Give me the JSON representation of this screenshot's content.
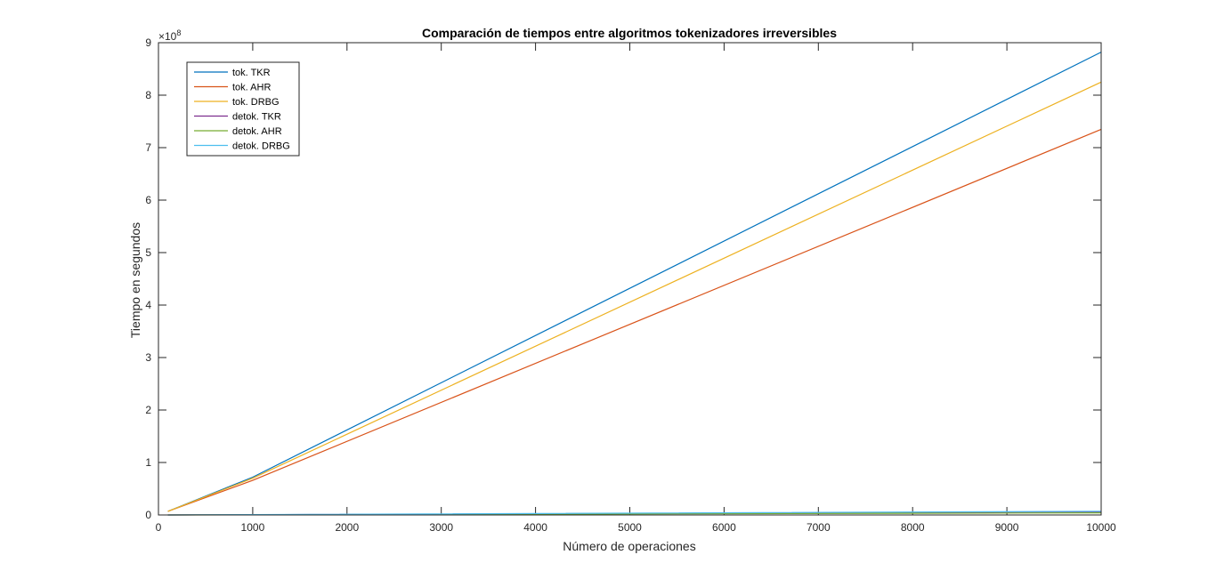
{
  "chart_data": {
    "type": "line",
    "title": "Comparación de tiempos entre algoritmos tokenizadores irreversibles",
    "xlabel": "Número de operaciones",
    "ylabel": "Tiempo en segundos",
    "xlim": [
      0,
      10000
    ],
    "ylim": [
      0,
      9
    ],
    "y_exponent_label": "×10",
    "y_exponent_power": "8",
    "x_ticks": [
      "0",
      "1000",
      "2000",
      "3000",
      "4000",
      "5000",
      "6000",
      "7000",
      "8000",
      "9000",
      "10000"
    ],
    "y_ticks": [
      "0",
      "1",
      "2",
      "3",
      "4",
      "5",
      "6",
      "7",
      "8",
      "9"
    ],
    "grid": false,
    "legend_position": "top-left",
    "series": [
      {
        "name": "tok. TKR",
        "color": "#0072BD",
        "x": [
          100,
          1000,
          10000
        ],
        "y": [
          0.07,
          0.72,
          8.82
        ]
      },
      {
        "name": "tok. AHR",
        "color": "#D95319",
        "x": [
          100,
          1000,
          10000
        ],
        "y": [
          0.07,
          0.66,
          7.35
        ]
      },
      {
        "name": "tok. DRBG",
        "color": "#EDB120",
        "x": [
          100,
          1000,
          10000
        ],
        "y": [
          0.07,
          0.7,
          8.25
        ]
      },
      {
        "name": "detok. TKR",
        "color": "#7E2F8E",
        "x": [
          100,
          1000,
          10000
        ],
        "y": [
          0.0,
          0.005,
          0.06
        ]
      },
      {
        "name": "detok. AHR",
        "color": "#77AC30",
        "x": [
          100,
          1000,
          10000
        ],
        "y": [
          0.0,
          0.003,
          0.04
        ]
      },
      {
        "name": "detok. DRBG",
        "color": "#4DBEEE",
        "x": [
          100,
          1000,
          10000
        ],
        "y": [
          0.0,
          0.006,
          0.07
        ]
      }
    ]
  }
}
